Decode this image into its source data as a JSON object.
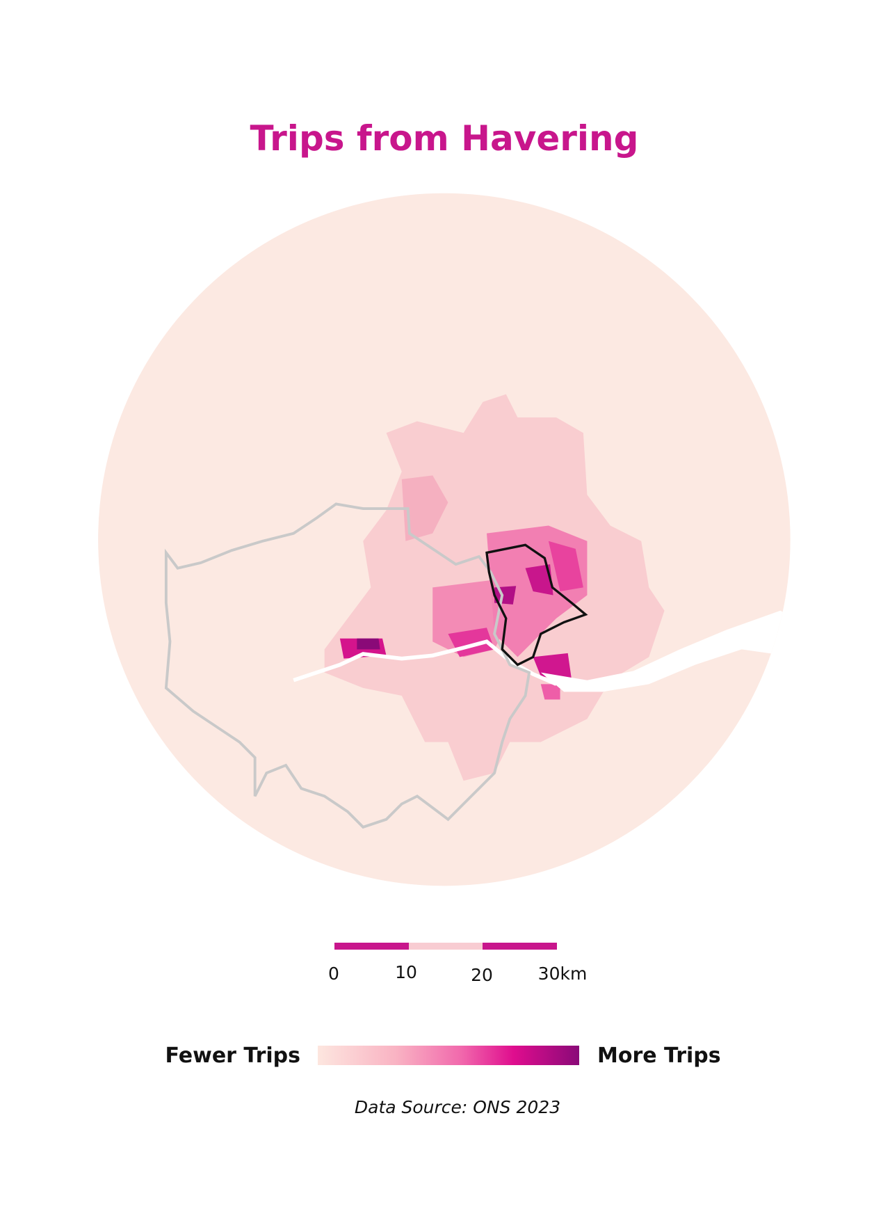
{
  "title": "Trips from Havering",
  "scale_bar": {
    "labels": [
      "0",
      "10",
      "20",
      "30km"
    ]
  },
  "legend": {
    "low": "Fewer Trips",
    "high": "More Trips"
  },
  "source": "Data Source: ONS 2023"
}
